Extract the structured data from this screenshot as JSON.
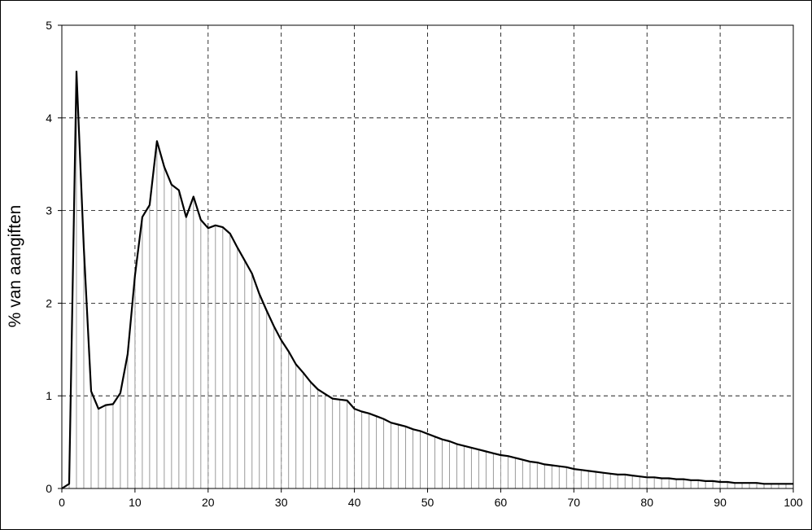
{
  "chart_data": {
    "type": "area",
    "title": "",
    "xlabel": "",
    "ylabel": "% van aangiften",
    "xlim": [
      0,
      100
    ],
    "ylim": [
      0,
      5
    ],
    "xticks": [
      0,
      10,
      20,
      30,
      40,
      50,
      60,
      70,
      80,
      90,
      100
    ],
    "yticks": [
      0,
      1,
      2,
      3,
      4,
      5
    ],
    "grid": true,
    "legend": "none",
    "colors": {
      "line": "#000000",
      "fill_lines": "#9a9a9a",
      "grid": "#000000",
      "frame": "#000000"
    },
    "series": [
      {
        "x": [
          0,
          1,
          2,
          3,
          4,
          5,
          6,
          7,
          8,
          9,
          10,
          11,
          12,
          13,
          14,
          15,
          16,
          17,
          18,
          19,
          20,
          21,
          22,
          23,
          24,
          25,
          26,
          27,
          28,
          29,
          30,
          31,
          32,
          33,
          34,
          35,
          36,
          37,
          38,
          39,
          40,
          41,
          42,
          43,
          44,
          45,
          46,
          47,
          48,
          49,
          50,
          51,
          52,
          53,
          54,
          55,
          56,
          57,
          58,
          59,
          60,
          61,
          62,
          63,
          64,
          65,
          66,
          67,
          68,
          69,
          70,
          71,
          72,
          73,
          74,
          75,
          76,
          77,
          78,
          79,
          80,
          81,
          82,
          83,
          84,
          85,
          86,
          87,
          88,
          89,
          90,
          91,
          92,
          93,
          94,
          95,
          96,
          97,
          98,
          99,
          100
        ],
        "values": [
          0,
          0.05,
          4.5,
          2.6,
          1.05,
          0.86,
          0.9,
          0.91,
          1.03,
          1.45,
          2.3,
          2.93,
          3.06,
          3.75,
          3.47,
          3.28,
          3.22,
          2.93,
          3.15,
          2.9,
          2.81,
          2.84,
          2.82,
          2.75,
          2.6,
          2.46,
          2.32,
          2.1,
          1.92,
          1.75,
          1.6,
          1.48,
          1.34,
          1.25,
          1.15,
          1.07,
          1.02,
          0.97,
          0.96,
          0.95,
          0.86,
          0.83,
          0.81,
          0.78,
          0.75,
          0.71,
          0.69,
          0.67,
          0.64,
          0.62,
          0.59,
          0.56,
          0.53,
          0.51,
          0.48,
          0.46,
          0.44,
          0.42,
          0.4,
          0.38,
          0.36,
          0.35,
          0.33,
          0.31,
          0.29,
          0.28,
          0.26,
          0.25,
          0.24,
          0.23,
          0.21,
          0.2,
          0.19,
          0.18,
          0.17,
          0.16,
          0.15,
          0.15,
          0.14,
          0.13,
          0.12,
          0.12,
          0.11,
          0.11,
          0.1,
          0.1,
          0.09,
          0.09,
          0.08,
          0.08,
          0.07,
          0.07,
          0.06,
          0.06,
          0.06,
          0.06,
          0.05,
          0.05,
          0.05,
          0.05,
          0.05
        ]
      }
    ]
  }
}
